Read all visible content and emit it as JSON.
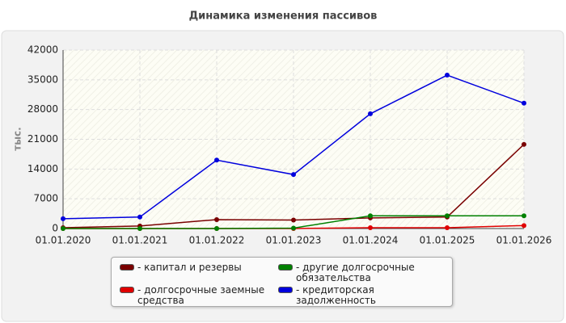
{
  "chart_data": {
    "type": "line",
    "title": "Динамика изменения пассивов",
    "y_label": "тыс.",
    "categories": [
      "01.01.2020",
      "01.01.2021",
      "01.01.2022",
      "01.01.2023",
      "01.01.2024",
      "01.01.2025",
      "01.01.2026"
    ],
    "series": [
      {
        "name": "- капитал и резервы",
        "color": "#7a0000",
        "values": [
          200,
          600,
          2100,
          2000,
          2500,
          2700,
          19800
        ]
      },
      {
        "name": "- долгосрочные заемные средства",
        "color": "#e00000",
        "values": [
          0,
          0,
          0,
          0,
          200,
          200,
          700
        ]
      },
      {
        "name": "- другие долгосрочные обязательства",
        "color": "#008000",
        "values": [
          0,
          0,
          0,
          100,
          3000,
          3000,
          3000
        ]
      },
      {
        "name": "- кредиторская задолженность",
        "color": "#0000dd",
        "values": [
          2300,
          2700,
          16100,
          12700,
          27000,
          36100,
          29500
        ]
      }
    ],
    "ylim": [
      0,
      42000
    ],
    "yticks": [
      0,
      7000,
      14000,
      21000,
      28000,
      35000,
      42000
    ],
    "grid": true
  }
}
